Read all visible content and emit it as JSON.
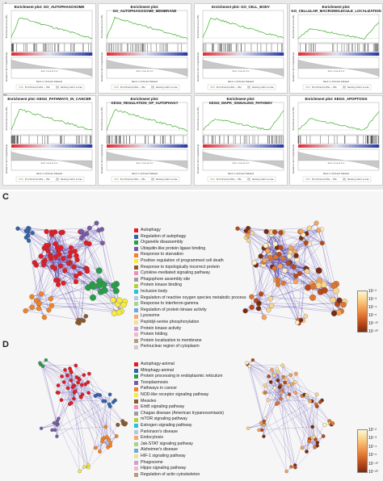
{
  "panels": {
    "a": "A",
    "b": "B",
    "c": "C",
    "d": "D"
  },
  "gsea": {
    "title_prefix": "Enrichment plot:",
    "plots": [
      {
        "name": "GO_AUTOPHAGOSOME",
        "title2": "",
        "shape": "down"
      },
      {
        "name": "GO_AUTOPHAGOSOME_MEMBRANE",
        "title2": "",
        "shape": "down"
      },
      {
        "name": "GO_CELL_BODY",
        "title2": "",
        "shape": "down"
      },
      {
        "name": "GO_",
        "title2": "CELLULAR_MACROMOLECULE_LOCALIZATION",
        "shape": "dip",
        "multiline": true
      },
      {
        "name": "KEGG_PATHWAYS_IN_CANCER",
        "title2": "",
        "shape": "down"
      },
      {
        "name": "KEGG_REGULATION_OF_AUTOPHAGY",
        "title2": "",
        "shape": "down"
      },
      {
        "name": "KEGG_MAPK_SIGNALING_PATHWAY",
        "title2": "",
        "shape": "dip"
      },
      {
        "name": "KEGG_APOPTOSIS",
        "title2": "",
        "shape": "dip"
      }
    ],
    "ylabel_top": "Enrichment score (ES)",
    "ylabel_bottom": "Ranked list metric (Signal2Noise)",
    "xlabel": "Rank in Ordered Dataset",
    "zero_label": "Zero cross at 1xx",
    "legend_es": "Enrichment profile — Hits",
    "legend_rank": "Ranking metric scores",
    "colors": {
      "es_line": "#3fae2a",
      "high": "#e0313b",
      "low": "#2c3ea5"
    }
  },
  "networkC": {
    "legend": [
      {
        "label": "Autophagy",
        "color": "#e21b24"
      },
      {
        "label": "Regulation of autophagy",
        "color": "#2f63ab"
      },
      {
        "label": "Organelle disassembly",
        "color": "#2a9d49"
      },
      {
        "label": "Ubiquitin-like protein ligase binding",
        "color": "#7a5aa6"
      },
      {
        "label": "Response to starvation",
        "color": "#f58220"
      },
      {
        "label": "Positive regulation of programmed cell death",
        "color": "#f7ec3c"
      },
      {
        "label": "Response to topologically incorrect protein",
        "color": "#8c5a2b"
      },
      {
        "label": "Cytokine-mediated signaling pathway",
        "color": "#ef8fbd"
      },
      {
        "label": "Phagophore assembly site",
        "color": "#9d9d9d"
      },
      {
        "label": "Protein kinase binding",
        "color": "#b7cf3a"
      },
      {
        "label": "Inclusion body",
        "color": "#26c2d8"
      },
      {
        "label": "Regulation of reactive oxygen species metabolic process",
        "color": "#b4c7e7"
      },
      {
        "label": "Response to interferon-gamma",
        "color": "#a5d48a"
      },
      {
        "label": "Regulation of protein kinase activity",
        "color": "#6fa8dc"
      },
      {
        "label": "Lysosome",
        "color": "#f6a66e"
      },
      {
        "label": "Peptidyl-serine phosphorylation",
        "color": "#f1e08f"
      },
      {
        "label": "Protein kinase activity",
        "color": "#c9a0d6"
      },
      {
        "label": "Protein folding",
        "color": "#f7b6c8"
      },
      {
        "label": "Protein localization to membrane",
        "color": "#b59b80"
      },
      {
        "label": "Perinuclear region of cytoplasm",
        "color": "#cccccc"
      }
    ],
    "colorbar": [
      "10⁻²",
      "10⁻³",
      "10⁻⁴",
      "10⁻⁶",
      "10⁻¹⁰",
      "10⁻²⁰"
    ]
  },
  "networkD": {
    "legend": [
      {
        "label": "Autophagy-animal",
        "color": "#e21b24"
      },
      {
        "label": "Mitophagy-animal",
        "color": "#2f63ab"
      },
      {
        "label": "Protein processing in endoplasmic reticulum",
        "color": "#2a9d49"
      },
      {
        "label": "Toxoplasmosis",
        "color": "#7a5aa6"
      },
      {
        "label": "Pathways in cancer",
        "color": "#f58220"
      },
      {
        "label": "NOD-like receptor signaling pathway",
        "color": "#f7ec3c"
      },
      {
        "label": "Measles",
        "color": "#8c5a2b"
      },
      {
        "label": "ErbB signaling pathway",
        "color": "#ef8fbd"
      },
      {
        "label": "Chagas disease (American trypanosomiasis)",
        "color": "#9d9d9d"
      },
      {
        "label": "mTOR signaling pathway",
        "color": "#b7cf3a"
      },
      {
        "label": "Estrogen signaling pathway",
        "color": "#26c2d8"
      },
      {
        "label": "Parkinson's disease",
        "color": "#b4c7e7"
      },
      {
        "label": "Endocytosis",
        "color": "#f6a66e"
      },
      {
        "label": "Jak-STAT signaling pathway",
        "color": "#a5d48a"
      },
      {
        "label": "Alzheimer's disease",
        "color": "#6fa8dc"
      },
      {
        "label": "HIF-1 signaling pathway",
        "color": "#f1e08f"
      },
      {
        "label": "Phagosome",
        "color": "#c9a0d6"
      },
      {
        "label": "Hippo signaling pathway",
        "color": "#f7b6c8"
      },
      {
        "label": "Regulation of actin cytoskeleton",
        "color": "#b59b80"
      }
    ],
    "colorbar": [
      "10⁻²",
      "10⁻³",
      "10⁻⁴",
      "10⁻⁶",
      "10⁻¹⁰",
      "10⁻²⁰"
    ]
  }
}
